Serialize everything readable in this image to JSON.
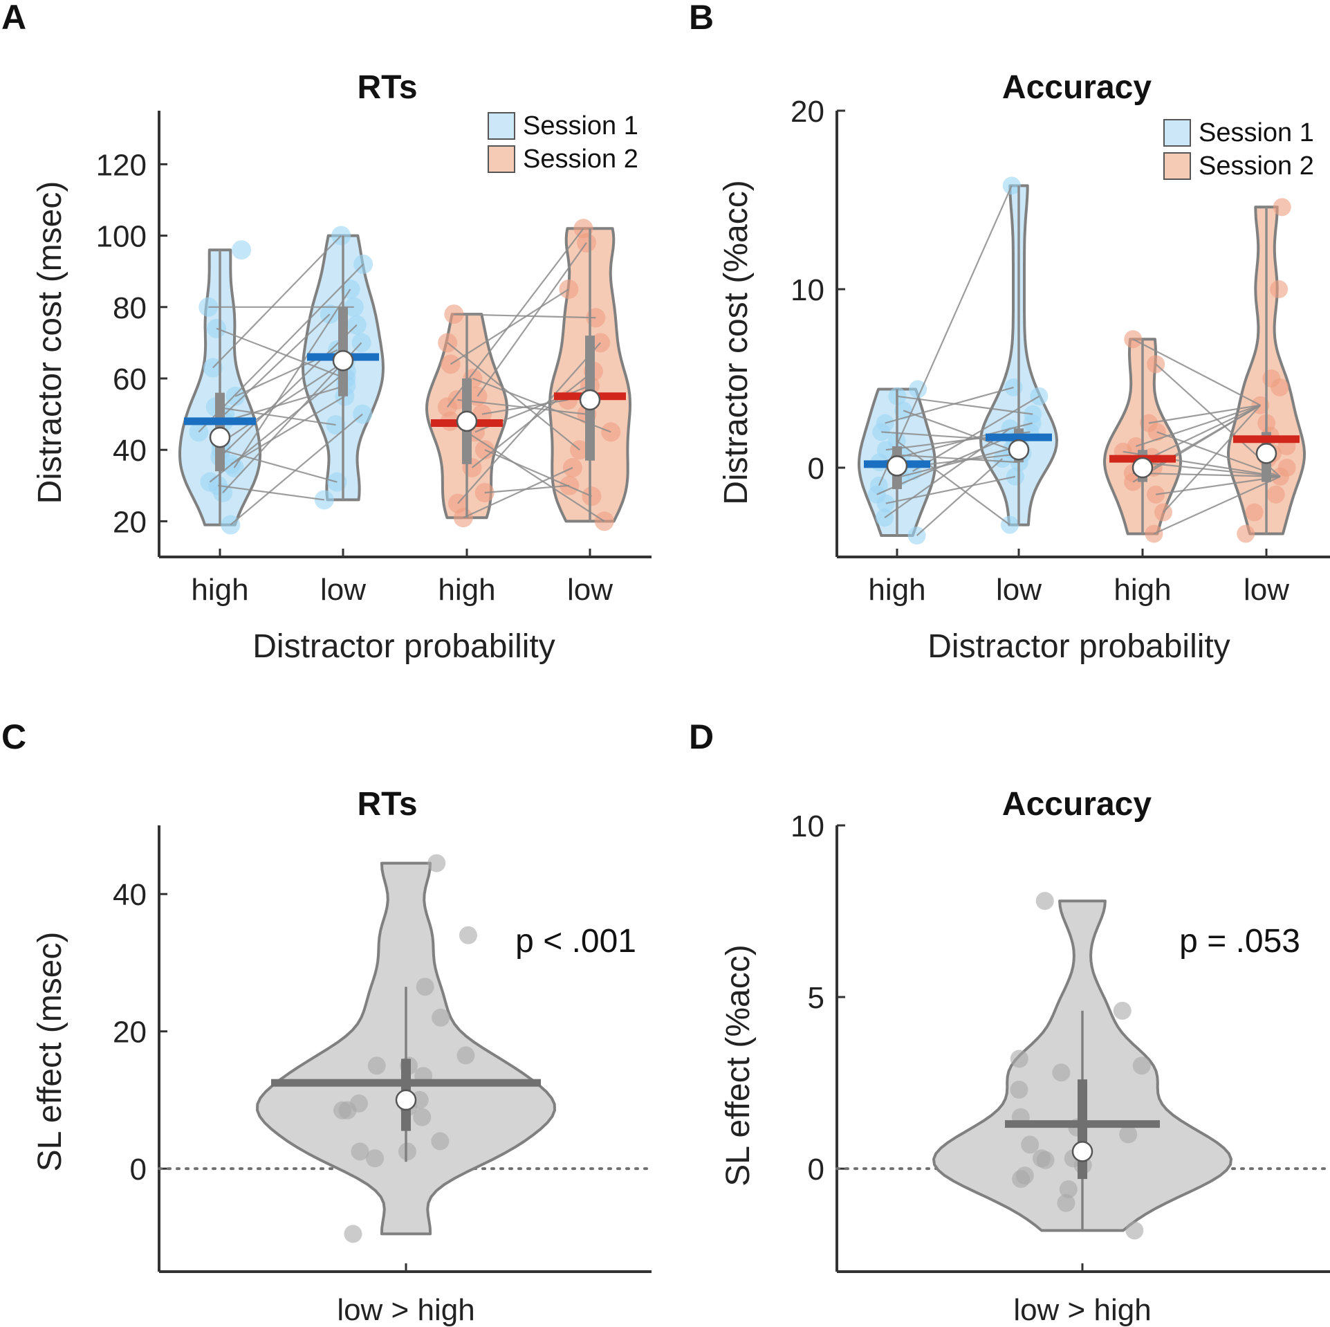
{
  "colors": {
    "session1_fill": "#cce8f8",
    "session1_point": "#9dd6f5",
    "session1_mean": "#1a6fc0",
    "session2_fill": "#f5cbb6",
    "session2_point": "#ee9e82",
    "session2_mean": "#d1261b",
    "outline": "#808080",
    "diff_fill": "#d4d4d4",
    "diff_point": "#a8a8a8",
    "diff_mean": "#707070",
    "connector": "#8c8c8c",
    "axis": "#333333"
  },
  "chart_data": [
    {
      "type": "violin",
      "panel_label": "A",
      "title": "RTs",
      "xlabel": "Distractor probability",
      "ylabel": "Distractor cost (msec)",
      "ylim": [
        10,
        135
      ],
      "yticks": [
        20,
        40,
        60,
        80,
        100,
        120
      ],
      "categories": [
        "high",
        "low",
        "high",
        "low"
      ],
      "legend": {
        "position": "top-right",
        "entries": [
          "Session 1",
          "Session 2"
        ]
      },
      "paired_lines": true,
      "groups": [
        {
          "label": "high",
          "session": "Session 1",
          "mean": 48,
          "median": 43.5,
          "q1": 34,
          "q3": 56,
          "whisker": [
            19,
            96
          ],
          "points": [
            19,
            28,
            30,
            31,
            35,
            36,
            38,
            40,
            42,
            45,
            48,
            50,
            52,
            55,
            63,
            74,
            80,
            96
          ]
        },
        {
          "label": "low",
          "session": "Session 1",
          "mean": 66,
          "median": 65,
          "q1": 55,
          "q3": 80,
          "whisker": [
            26,
            100
          ],
          "points": [
            26,
            31,
            47,
            50,
            55,
            58,
            60,
            62,
            65,
            68,
            70,
            75,
            78,
            80,
            85,
            92,
            100
          ]
        },
        {
          "label": "high",
          "session": "Session 2",
          "mean": 47.5,
          "median": 48,
          "q1": 36,
          "q3": 60,
          "whisker": [
            21,
            78
          ],
          "points": [
            21,
            25,
            28,
            35,
            40,
            45,
            48,
            50,
            52,
            54,
            55,
            60,
            64,
            70,
            78
          ]
        },
        {
          "label": "low",
          "session": "Session 2",
          "mean": 55,
          "median": 54,
          "q1": 37,
          "q3": 72,
          "whisker": [
            20,
            102
          ],
          "points": [
            20,
            27,
            30,
            35,
            40,
            45,
            50,
            54,
            58,
            62,
            70,
            77,
            85,
            98,
            102
          ]
        }
      ]
    },
    {
      "type": "violin",
      "panel_label": "B",
      "title": "Accuracy",
      "xlabel": "Distractor probability",
      "ylabel": "Distractor cost (%acc)",
      "ylim": [
        -5,
        20
      ],
      "yticks": [
        0,
        10,
        20
      ],
      "categories": [
        "high",
        "low",
        "high",
        "low"
      ],
      "legend": {
        "position": "top-right",
        "entries": [
          "Session 1",
          "Session 2"
        ]
      },
      "paired_lines": true,
      "groups": [
        {
          "label": "high",
          "session": "Session 1",
          "mean": 0.2,
          "median": 0.1,
          "q1": -1.2,
          "q3": 1.2,
          "whisker": [
            -3.8,
            4.4
          ],
          "points": [
            -3.8,
            -2.8,
            -2,
            -1.5,
            -1,
            -0.5,
            -0.2,
            0,
            0.3,
            0.7,
            1,
            1.5,
            2,
            2.5,
            3.2,
            4,
            4.4
          ]
        },
        {
          "label": "low",
          "session": "Session 1",
          "mean": 1.7,
          "median": 1.0,
          "q1": 0.3,
          "q3": 2.2,
          "whisker": [
            -3.2,
            15.8
          ],
          "points": [
            -3.2,
            -0.5,
            0.3,
            0.5,
            0.8,
            1,
            1.2,
            1.5,
            1.8,
            2,
            2.2,
            2.5,
            3,
            4,
            4.5,
            15.8
          ]
        },
        {
          "label": "high",
          "session": "Session 2",
          "mean": 0.5,
          "median": 0.0,
          "q1": -0.8,
          "q3": 1.0,
          "whisker": [
            -3.7,
            7.2
          ],
          "points": [
            -3.7,
            -2.5,
            -1.5,
            -0.8,
            -0.3,
            0,
            0.3,
            0.6,
            0.9,
            1.2,
            2,
            2.5,
            5.8,
            7.2
          ]
        },
        {
          "label": "low",
          "session": "Session 2",
          "mean": 1.6,
          "median": 0.8,
          "q1": -0.8,
          "q3": 2.0,
          "whisker": [
            -3.7,
            14.6
          ],
          "points": [
            -3.7,
            -2.5,
            -1.5,
            -0.5,
            0,
            0.5,
            0.8,
            1.2,
            1.8,
            2.5,
            3.5,
            4.5,
            5,
            10,
            14.6
          ]
        }
      ]
    },
    {
      "type": "violin",
      "panel_label": "C",
      "title": "RTs",
      "xlabel": "",
      "ylabel": "SL effect (msec)",
      "ylim": [
        -15,
        50
      ],
      "yticks": [
        0,
        20,
        40
      ],
      "categories": [
        "low > high"
      ],
      "reference_line": 0,
      "annotation": "p < .001",
      "groups": [
        {
          "label": "low > high",
          "mean": 12.5,
          "median": 10,
          "q1": 5.5,
          "q3": 16,
          "whisker": [
            1,
            26.5
          ],
          "points": [
            -9.5,
            1.5,
            2.5,
            2.5,
            4,
            7.5,
            8.5,
            8.5,
            9,
            9.5,
            10,
            13.5,
            15,
            15,
            16.5,
            22,
            26.5,
            34,
            44.5
          ]
        }
      ]
    },
    {
      "type": "violin",
      "panel_label": "D",
      "title": "Accuracy",
      "xlabel": "",
      "ylabel": "SL effect (%acc)",
      "ylim": [
        -3,
        10
      ],
      "yticks": [
        0,
        5,
        10
      ],
      "categories": [
        "low > high"
      ],
      "reference_line": 0,
      "annotation": "p = .053",
      "groups": [
        {
          "label": "low > high",
          "mean": 1.3,
          "median": 0.5,
          "q1": -0.3,
          "q3": 2.6,
          "whisker": [
            -1.8,
            4.6
          ],
          "points": [
            -1.8,
            -1,
            -0.6,
            -0.3,
            -0.2,
            0.1,
            0.25,
            0.3,
            0.3,
            0.7,
            1,
            1.2,
            1.5,
            2.3,
            2.8,
            3,
            3.2,
            4.6,
            7.8
          ]
        }
      ]
    }
  ]
}
